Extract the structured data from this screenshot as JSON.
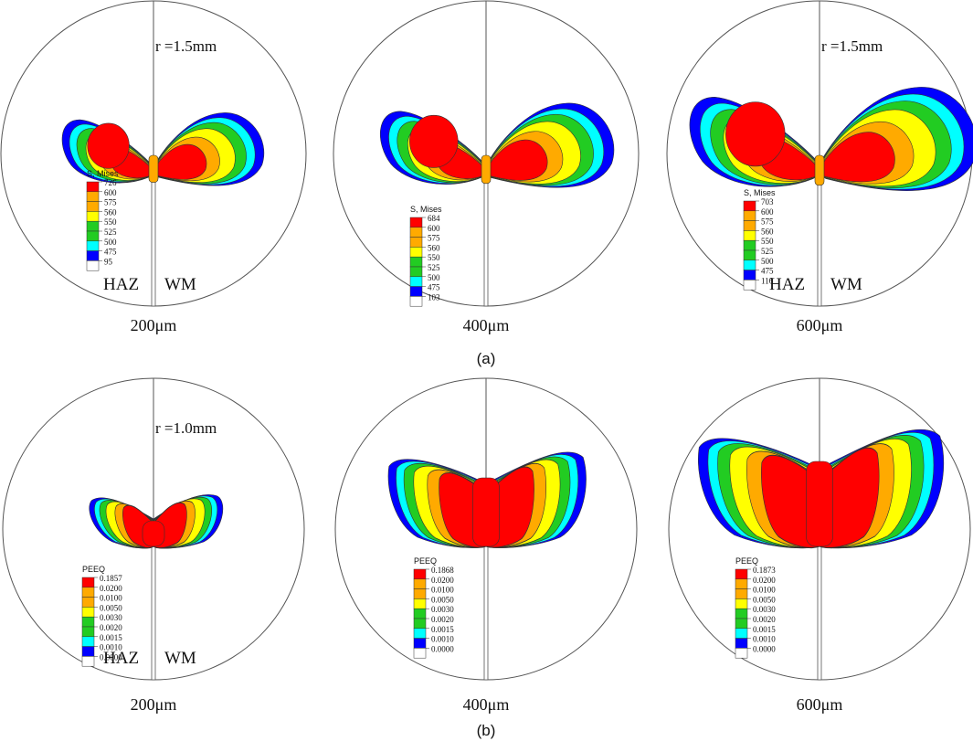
{
  "panels": {
    "a": {
      "caption": "(a)",
      "legend_title": "S, Mises",
      "items": [
        {
          "size_label": "200μm",
          "radius_label": "r =1.5mm",
          "side_left": "HAZ",
          "side_right": "WM",
          "legend_values": [
            "726",
            "600",
            "575",
            "560",
            "550",
            "525",
            "500",
            "475",
            "95"
          ]
        },
        {
          "size_label": "400μm",
          "radius_label": "",
          "side_left": "",
          "side_right": "",
          "legend_values": [
            "684",
            "600",
            "575",
            "560",
            "550",
            "525",
            "500",
            "475",
            "103"
          ]
        },
        {
          "size_label": "600μm",
          "radius_label": "r =1.5mm",
          "side_left": "HAZ",
          "side_right": "WM",
          "legend_values": [
            "703",
            "600",
            "575",
            "560",
            "550",
            "525",
            "500",
            "475",
            "116"
          ]
        }
      ]
    },
    "b": {
      "caption": "(b)",
      "legend_title": "PEEQ",
      "items": [
        {
          "size_label": "200μm",
          "radius_label": "r =1.0mm",
          "side_left": "HAZ",
          "side_right": "WM",
          "legend_values": [
            "0.1857",
            "0.0200",
            "0.0100",
            "0.0050",
            "0.0030",
            "0.0020",
            "0.0015",
            "0.0010",
            "0.0000"
          ]
        },
        {
          "size_label": "400μm",
          "radius_label": "",
          "side_left": "",
          "side_right": "",
          "legend_values": [
            "0.1868",
            "0.0200",
            "0.0100",
            "0.0050",
            "0.0030",
            "0.0020",
            "0.0015",
            "0.0010",
            "0.0000"
          ]
        },
        {
          "size_label": "600μm",
          "radius_label": "",
          "side_left": "",
          "side_right": "",
          "legend_values": [
            "0.1873",
            "0.0200",
            "0.0100",
            "0.0050",
            "0.0030",
            "0.0020",
            "0.0015",
            "0.0010",
            "0.0000"
          ]
        }
      ]
    }
  },
  "colors": {
    "red": "#ff0000",
    "orange": "#ffaa00",
    "yellow": "#ffff00",
    "green": "#22cc22",
    "cyan": "#00ffff",
    "blue": "#0000ff",
    "white": "#ffffff",
    "outline": "#555555"
  }
}
